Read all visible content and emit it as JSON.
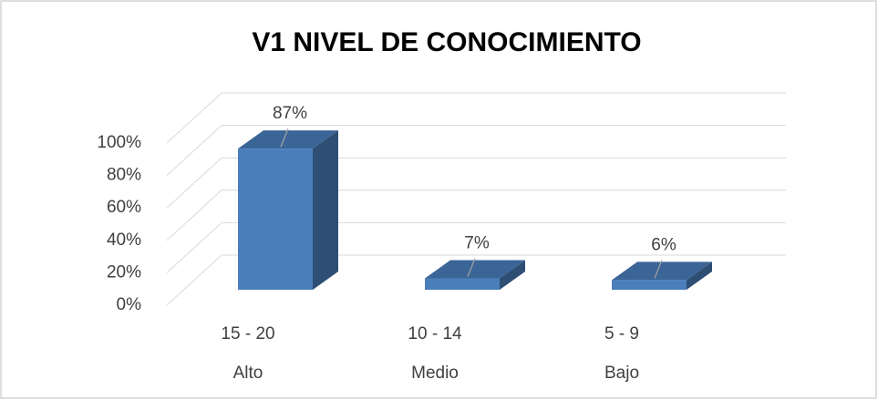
{
  "chart_data": {
    "type": "bar3d",
    "title": "V1 NIVEL DE CONOCIMIENTO",
    "categories": [
      "15 - 20",
      "10 - 14",
      "5 - 9"
    ],
    "category_sublabels": [
      "Alto",
      "Medio",
      "Bajo"
    ],
    "values": [
      87,
      7,
      6
    ],
    "value_labels": [
      "87%",
      "7%",
      "6%"
    ],
    "color": "#4a7ebb",
    "ylim": [
      0,
      100
    ],
    "yticks": [
      {
        "value": 0,
        "label": "0%"
      },
      {
        "value": 20,
        "label": "20%"
      },
      {
        "value": 40,
        "label": "40%"
      },
      {
        "value": 60,
        "label": "60%"
      },
      {
        "value": 80,
        "label": "80%"
      },
      {
        "value": 100,
        "label": "100%"
      }
    ],
    "grid": true
  }
}
